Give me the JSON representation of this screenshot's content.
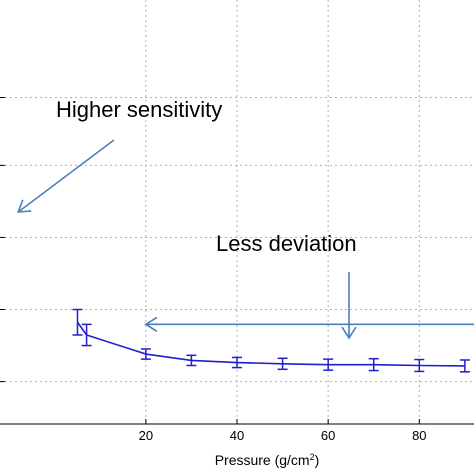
{
  "chart_data": {
    "type": "line",
    "title": "",
    "xlabel": "Pressure (g/cm",
    "xlabel_superscript": "2",
    "xlabel_suffix": ")",
    "ylabel": "",
    "xlim": [
      -12,
      92
    ],
    "ylim": [
      0,
      1.0
    ],
    "x_ticks": [
      20,
      40,
      60,
      80
    ],
    "x_tick_labels": [
      "20",
      "40",
      "60",
      "80"
    ],
    "y_ticks": [
      0.1,
      0.27,
      0.44,
      0.61,
      0.77
    ],
    "grid": true,
    "legend": "none",
    "series": [
      {
        "color": "#1f1fd0",
        "marker": "errorbar",
        "x": [
          5,
          7,
          20,
          30,
          40,
          50,
          60,
          70,
          80,
          90
        ],
        "y": [
          0.24,
          0.21,
          0.165,
          0.15,
          0.145,
          0.142,
          0.14,
          0.14,
          0.138,
          0.137
        ],
        "err": [
          0.03,
          0.025,
          0.012,
          0.012,
          0.012,
          0.013,
          0.013,
          0.014,
          0.014,
          0.014
        ]
      }
    ],
    "annotations": [
      {
        "text": "Higher sensitivity",
        "arrow_to": [
          -8,
          0.5
        ]
      },
      {
        "text": "Less deviation",
        "arrow_to": [
          20,
          0.235
        ]
      }
    ],
    "annotation_color": "#4a7fbf"
  }
}
